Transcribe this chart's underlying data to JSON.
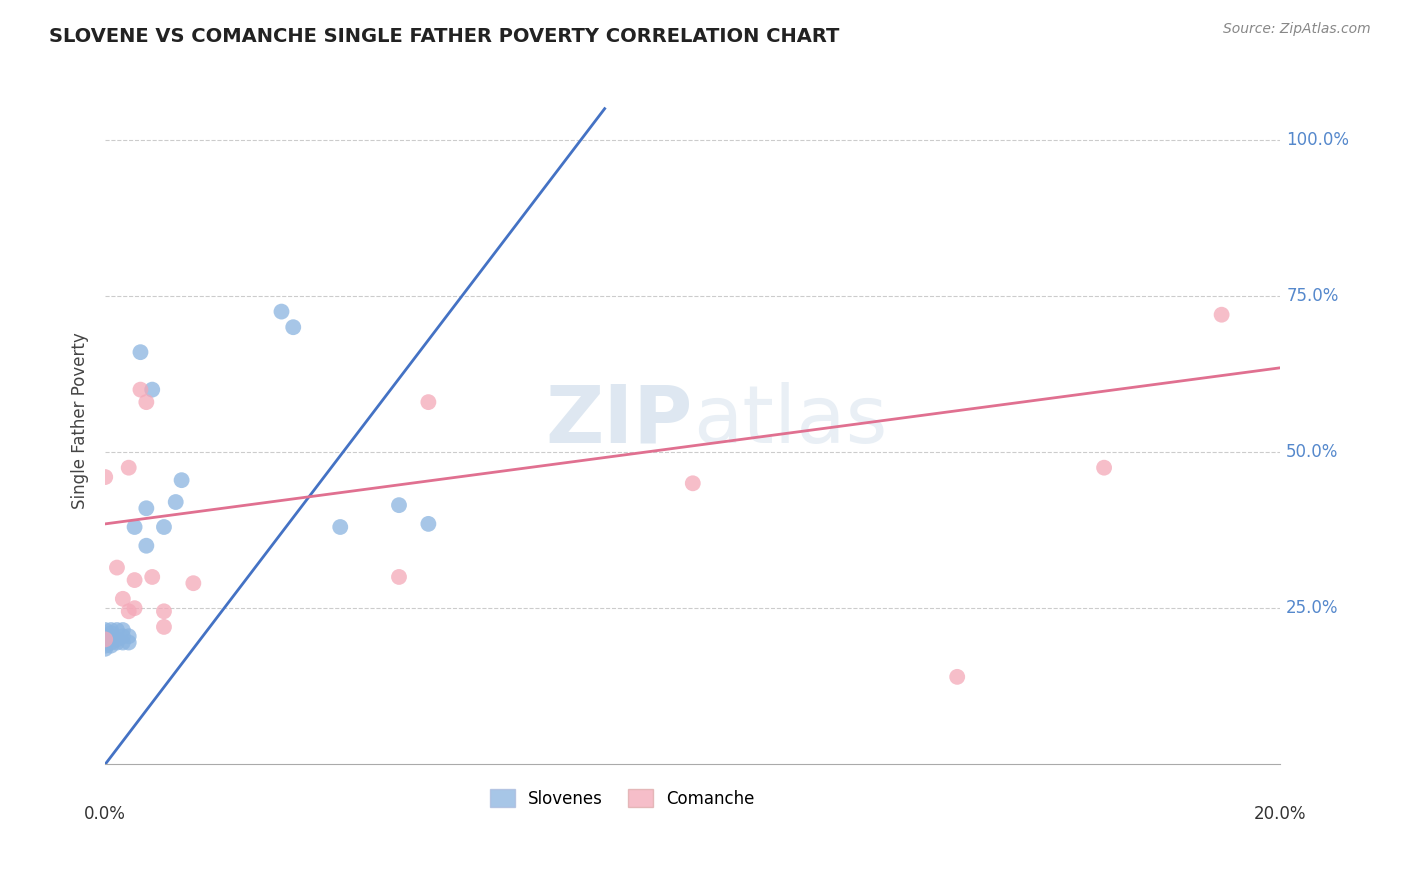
{
  "title": "SLOVENE VS COMANCHE SINGLE FATHER POVERTY CORRELATION CHART",
  "source": "Source: ZipAtlas.com",
  "ylabel": "Single Father Poverty",
  "background_color": "#ffffff",
  "blue_color": "#8ab4e0",
  "pink_color": "#f4a8b8",
  "blue_line_color": "#4472c4",
  "pink_line_color": "#e07090",
  "watermark_text": "ZIPatlas",
  "xlim": [
    0.0,
    0.2
  ],
  "ylim": [
    0.0,
    1.1
  ],
  "ytick_positions": [
    0.25,
    0.5,
    0.75,
    1.0
  ],
  "ytick_labels": [
    "25.0%",
    "50.0%",
    "75.0%",
    "100.0%"
  ],
  "blue_line": [
    0.0,
    0.0,
    0.085,
    1.05
  ],
  "pink_line": [
    0.0,
    0.385,
    0.2,
    0.635
  ],
  "slovene_x": [
    0.0,
    0.0,
    0.0,
    0.0,
    0.0,
    0.0,
    0.001,
    0.001,
    0.001,
    0.001,
    0.001,
    0.002,
    0.002,
    0.002,
    0.003,
    0.003,
    0.003,
    0.004,
    0.004,
    0.005,
    0.006,
    0.007,
    0.007,
    0.008,
    0.01,
    0.012,
    0.013,
    0.03,
    0.032,
    0.04,
    0.05,
    0.055
  ],
  "slovene_y": [
    0.185,
    0.195,
    0.205,
    0.215,
    0.2,
    0.19,
    0.195,
    0.205,
    0.215,
    0.19,
    0.21,
    0.2,
    0.215,
    0.195,
    0.205,
    0.195,
    0.215,
    0.205,
    0.195,
    0.38,
    0.66,
    0.41,
    0.35,
    0.6,
    0.38,
    0.42,
    0.455,
    0.725,
    0.7,
    0.38,
    0.415,
    0.385
  ],
  "comanche_x": [
    0.0,
    0.0,
    0.002,
    0.003,
    0.004,
    0.004,
    0.005,
    0.005,
    0.006,
    0.007,
    0.008,
    0.01,
    0.01,
    0.015,
    0.05,
    0.055,
    0.1,
    0.145,
    0.17,
    0.19
  ],
  "comanche_y": [
    0.46,
    0.2,
    0.315,
    0.265,
    0.245,
    0.475,
    0.295,
    0.25,
    0.6,
    0.58,
    0.3,
    0.245,
    0.22,
    0.29,
    0.3,
    0.58,
    0.45,
    0.14,
    0.475,
    0.72
  ]
}
